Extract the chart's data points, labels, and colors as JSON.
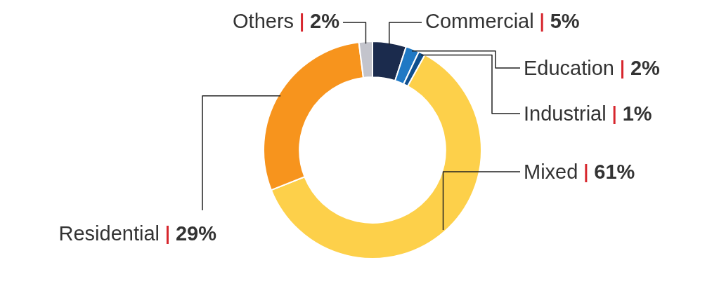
{
  "chart_data": {
    "type": "donut",
    "categories": [
      "Commercial",
      "Education",
      "Industrial",
      "Mixed",
      "Residential",
      "Others"
    ],
    "values": [
      5,
      2,
      1,
      61,
      29,
      2
    ],
    "colors": [
      "#1b2b4d",
      "#1f78c4",
      "#0f4f8f",
      "#fdd04a",
      "#f7941d",
      "#c3c4cc"
    ],
    "value_labels": [
      "5%",
      "2%",
      "1%",
      "61%",
      "29%",
      "2%"
    ],
    "legend": false
  }
}
